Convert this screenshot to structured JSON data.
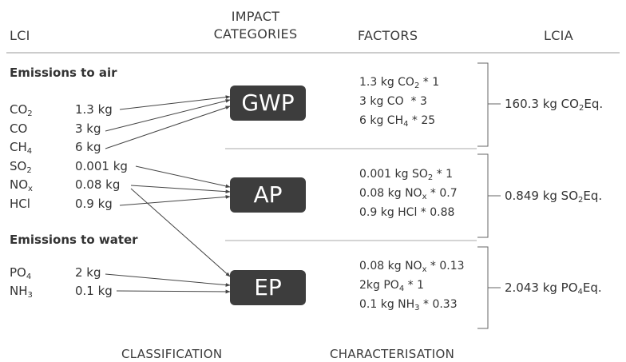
{
  "headers": {
    "lci": "LCI",
    "impact_categories": "IMPACT CATEGORIES",
    "factors": "FACTORS",
    "lcia": "LCIA"
  },
  "sections": {
    "air": "Emissions to air",
    "water": "Emissions to water"
  },
  "substances": [
    {
      "symbol": "CO",
      "sub": "2",
      "amount": "1.3 kg"
    },
    {
      "symbol": "CO",
      "sub": "",
      "amount": "3 kg"
    },
    {
      "symbol": "CH",
      "sub": "4",
      "amount": "6 kg"
    },
    {
      "symbol": "SO",
      "sub": "2",
      "amount": "0.001 kg"
    },
    {
      "symbol": "NO",
      "sub": "x",
      "amount": "0.08 kg"
    },
    {
      "symbol": "HCl",
      "sub": "",
      "amount": "0.9 kg"
    },
    {
      "symbol": "PO",
      "sub": "4",
      "amount": "2 kg"
    },
    {
      "symbol": "NH",
      "sub": "3",
      "amount": "0.1 kg"
    }
  ],
  "categories": [
    {
      "label": "GWP"
    },
    {
      "label": "AP"
    },
    {
      "label": "EP"
    }
  ],
  "factors": {
    "gwp": [
      {
        "pre": "1.3 kg CO",
        "sub": "2",
        "post": " * 1"
      },
      {
        "pre": "3 kg CO",
        "sub": "",
        "post": "  * 3"
      },
      {
        "pre": "6 kg CH",
        "sub": "4",
        "post": " * 25"
      }
    ],
    "ap": [
      {
        "pre": "0.001 kg SO",
        "sub": "2",
        "post": " * 1"
      },
      {
        "pre": "0.08 kg NO",
        "sub": "x",
        "post": " * 0.7"
      },
      {
        "pre": "0.9 kg HCl",
        "sub": "",
        "post": " * 0.88"
      }
    ],
    "ep": [
      {
        "pre": "0.08 kg NO",
        "sub": "x",
        "post": " * 0.13"
      },
      {
        "pre": "2kg PO",
        "sub": "4",
        "post": " * 1"
      },
      {
        "pre": "0.1 kg NH",
        "sub": "3",
        "post": " * 0.33"
      }
    ]
  },
  "results": [
    {
      "pre": "160.3 kg CO",
      "sub": "2",
      "post": "Eq."
    },
    {
      "pre": "0.849 kg SO",
      "sub": "2",
      "post": "Eq."
    },
    {
      "pre": "2.043 kg PO",
      "sub": "4",
      "post": "Eq."
    }
  ],
  "footers": {
    "classification": "CLASSIFICATION",
    "characterisation": "CHARACTERISATION"
  }
}
